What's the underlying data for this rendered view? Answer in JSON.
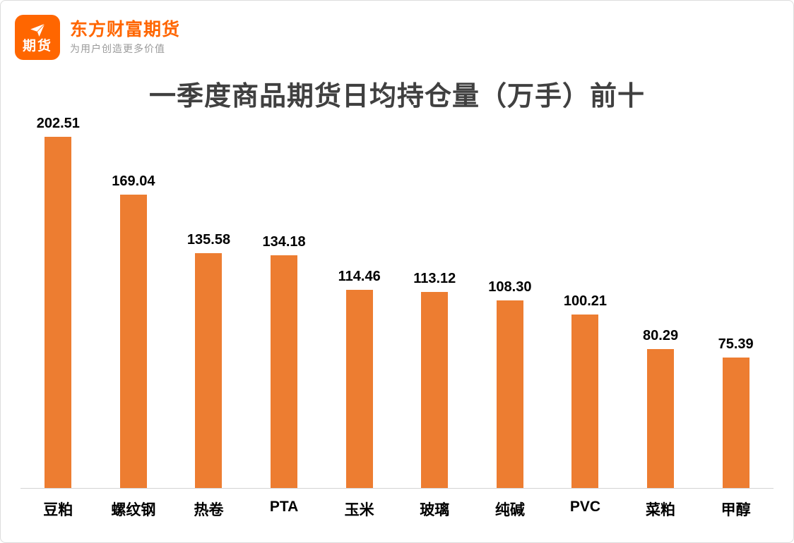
{
  "header": {
    "logo_text": "期货",
    "brand_name": "东方财富期货",
    "tagline": "为用户创造更多价值"
  },
  "colors": {
    "brand_orange": "#ff6600",
    "bar_orange": "#ed7d31",
    "title_text": "#404040",
    "tagline_gray": "#9a9a9a",
    "axis_line": "#d4d4d4"
  },
  "chart_data": {
    "type": "bar",
    "title": "一季度商品期货日均持仓量（万手）前十",
    "categories": [
      "豆粕",
      "螺纹钢",
      "热卷",
      "PTA",
      "玉米",
      "玻璃",
      "纯碱",
      "PVC",
      "菜粕",
      "甲醇"
    ],
    "values": [
      202.51,
      169.04,
      135.58,
      134.18,
      114.46,
      113.12,
      108.3,
      100.21,
      80.29,
      75.39
    ],
    "value_labels": [
      "202.51",
      "169.04",
      "135.58",
      "134.18",
      "114.46",
      "113.12",
      "108.30",
      "100.21",
      "80.29",
      "75.39"
    ],
    "bar_color": "#ed7d31",
    "ylim": [
      0,
      210
    ],
    "grid": false,
    "legend": false,
    "xlabel": "",
    "ylabel": ""
  }
}
